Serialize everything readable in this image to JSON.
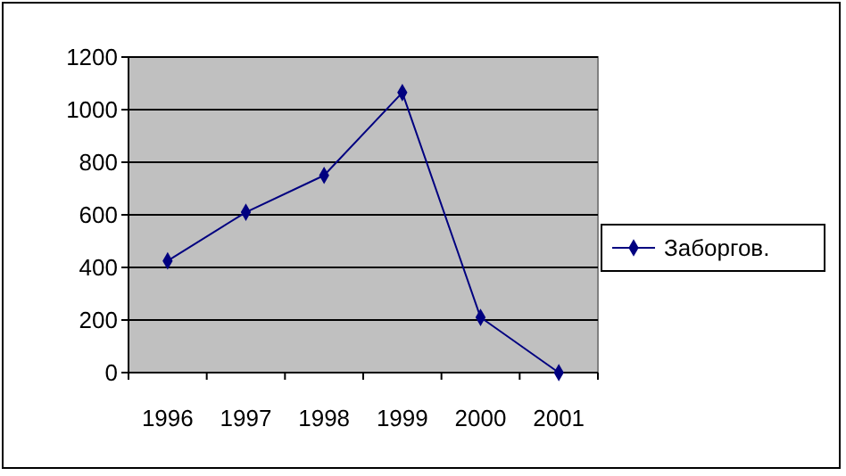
{
  "chart_data": {
    "type": "line",
    "categories": [
      "1996",
      "1997",
      "1998",
      "1999",
      "2000",
      "2001"
    ],
    "series": [
      {
        "name": "Заборгов.",
        "color": "#000080",
        "values": [
          425,
          610,
          750,
          1065,
          210,
          0
        ]
      }
    ],
    "ylim": [
      0,
      1200
    ],
    "yticks": [
      0,
      200,
      400,
      600,
      800,
      1000,
      1200
    ],
    "grid": "y",
    "legend": "right",
    "marker": "diamond",
    "line_style": "solid"
  }
}
